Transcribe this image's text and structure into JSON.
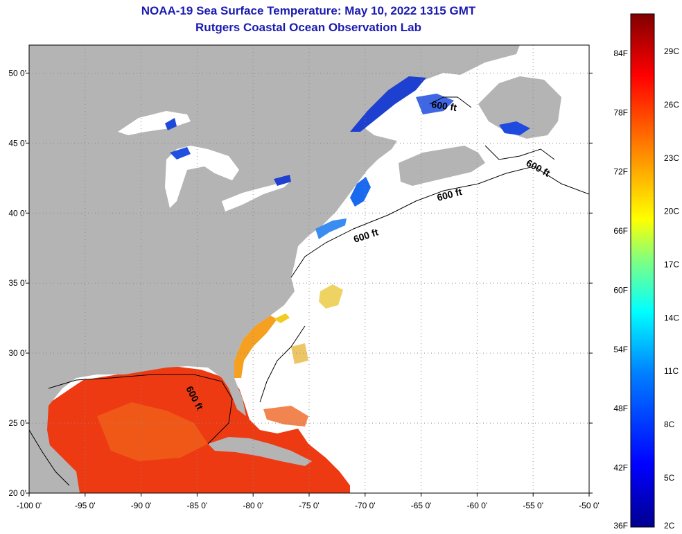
{
  "title": {
    "line1": "NOAA-19 Sea Surface Temperature:  May 10, 2022 1315 GMT",
    "line2": "Rutgers Coastal Ocean Observation Lab"
  },
  "map": {
    "lon_range": [
      -100,
      -50
    ],
    "lat_range": [
      20,
      52
    ],
    "lon_ticks": [
      {
        "value": -100,
        "label": "-100 0'"
      },
      {
        "value": -95,
        "label": "-95 0'"
      },
      {
        "value": -90,
        "label": "-90 0'"
      },
      {
        "value": -85,
        "label": "-85 0'"
      },
      {
        "value": -80,
        "label": "-80 0'"
      },
      {
        "value": -75,
        "label": "-75 0'"
      },
      {
        "value": -70,
        "label": "-70 0'"
      },
      {
        "value": -65,
        "label": "-65 0'"
      },
      {
        "value": -60,
        "label": "-60 0'"
      },
      {
        "value": -55,
        "label": "-55 0'"
      },
      {
        "value": -50,
        "label": "-50 0'"
      }
    ],
    "lat_ticks": [
      {
        "value": 20,
        "label": "20 0'"
      },
      {
        "value": 25,
        "label": "25 0'"
      },
      {
        "value": 30,
        "label": "30 0'"
      },
      {
        "value": 35,
        "label": "35 0'"
      },
      {
        "value": 40,
        "label": "40 0'"
      },
      {
        "value": 45,
        "label": "45 0'"
      },
      {
        "value": 50,
        "label": "50 0'"
      }
    ],
    "gridlines": "dotted",
    "land_color": "#b4b4b4",
    "no_data_color": "#ffffff",
    "contour_label": "600 ft"
  },
  "colorbar": {
    "range_f": [
      36,
      88
    ],
    "fahrenheit_ticks": [
      "36F",
      "42F",
      "48F",
      "54F",
      "60F",
      "66F",
      "72F",
      "78F",
      "84F"
    ],
    "celsius_ticks": [
      "2C",
      "5C",
      "8C",
      "11C",
      "14C",
      "17C",
      "20C",
      "23C",
      "26C",
      "29C"
    ],
    "colors": [
      "#00008f",
      "#0000ff",
      "#0080ff",
      "#00ffff",
      "#80ff80",
      "#ffff00",
      "#ff8000",
      "#ff0000",
      "#800000"
    ]
  }
}
